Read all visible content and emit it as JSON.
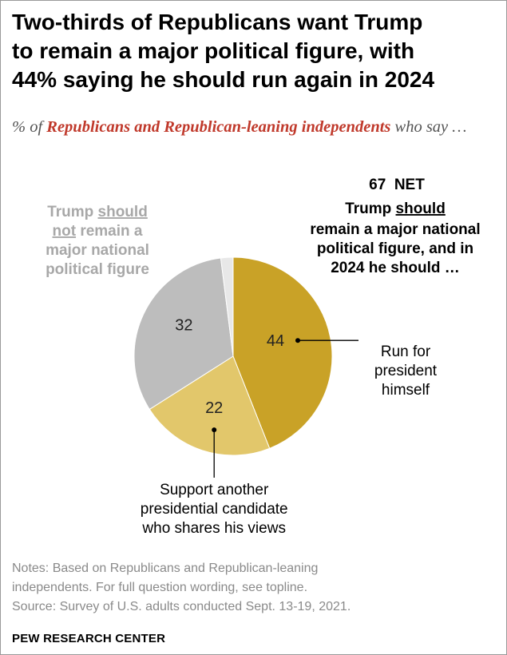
{
  "title_lines": [
    "Two-thirds of Republicans want Trump",
    "to remain a major political figure, with",
    "44% saying he should run again in 2024"
  ],
  "subtitle": {
    "prefix": "% of ",
    "highlight": "Republicans and Republican-leaning independents",
    "suffix": " who say …"
  },
  "chart_data": {
    "type": "pie",
    "title": "Two-thirds of Republicans want Trump to remain a major political figure, with 44% saying he should run again in 2024",
    "slices": [
      {
        "key": "run",
        "value": 44,
        "label_lines": [
          "Run for",
          "president",
          "himself"
        ],
        "color": "#c9a227"
      },
      {
        "key": "support",
        "value": 22,
        "label_lines": [
          "Support another",
          "presidential candidate",
          "who shares his views"
        ],
        "color": "#e2c76b"
      },
      {
        "key": "not_remain",
        "value": 32,
        "label": "Trump should not remain a major national political figure",
        "color": "#bdbdbd"
      },
      {
        "key": "no_answer",
        "value": 2,
        "color": "#e8e8e8"
      }
    ],
    "net": {
      "value": 67,
      "word": "NET",
      "line1": {
        "pre": "Trump ",
        "u": "should",
        "post": ""
      },
      "lines": [
        "remain a major national",
        "political figure, and in",
        "2024 he should …"
      ]
    },
    "not_remain_label": [
      {
        "pre": "Trump ",
        "u": "should",
        "post": ""
      },
      {
        "pre": "",
        "u": "not",
        "post": " remain a"
      },
      {
        "pre": "major national",
        "u": "",
        "post": ""
      },
      {
        "pre": "political figure",
        "u": "",
        "post": ""
      }
    ]
  },
  "notes": {
    "line1": "Notes: Based on Republicans and Republican-leaning",
    "line2": "independents. For full question wording, see topline.",
    "source": "Source: Survey of U.S. adults conducted Sept. 13-19, 2021."
  },
  "brand": "PEW RESEARCH CENTER"
}
